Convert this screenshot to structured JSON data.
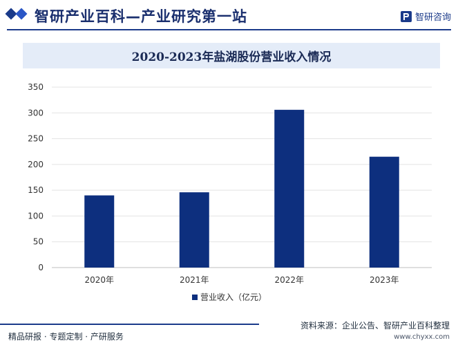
{
  "header": {
    "site_title": "智研产业百科—产业研究第一站",
    "brand_name": "智研咨询",
    "logo_icon": "chyxx-logo-icon"
  },
  "chart_data": {
    "type": "bar",
    "title": "2020-2023年盐湖股份营业收入情况",
    "categories": [
      "2020年",
      "2021年",
      "2022年",
      "2023年"
    ],
    "series": [
      {
        "name": "营业收入（亿元）",
        "values": [
          140,
          146,
          306,
          215
        ],
        "color": "#0d2f7e"
      }
    ],
    "ylim": [
      0,
      350
    ],
    "yticks": [
      0,
      50,
      100,
      150,
      200,
      250,
      300,
      350
    ],
    "grid": true,
    "legend": "bottom-center"
  },
  "footer": {
    "left_text": "精品研报 · 专题定制 · 产研服务",
    "source_text": "资料来源：企业公告、智研产业百科整理",
    "url_text": "www.chyxx.com"
  },
  "colors": {
    "accent": "#1a3a8a",
    "bar": "#0d2f7e",
    "title_band": "#e4ecf8"
  }
}
